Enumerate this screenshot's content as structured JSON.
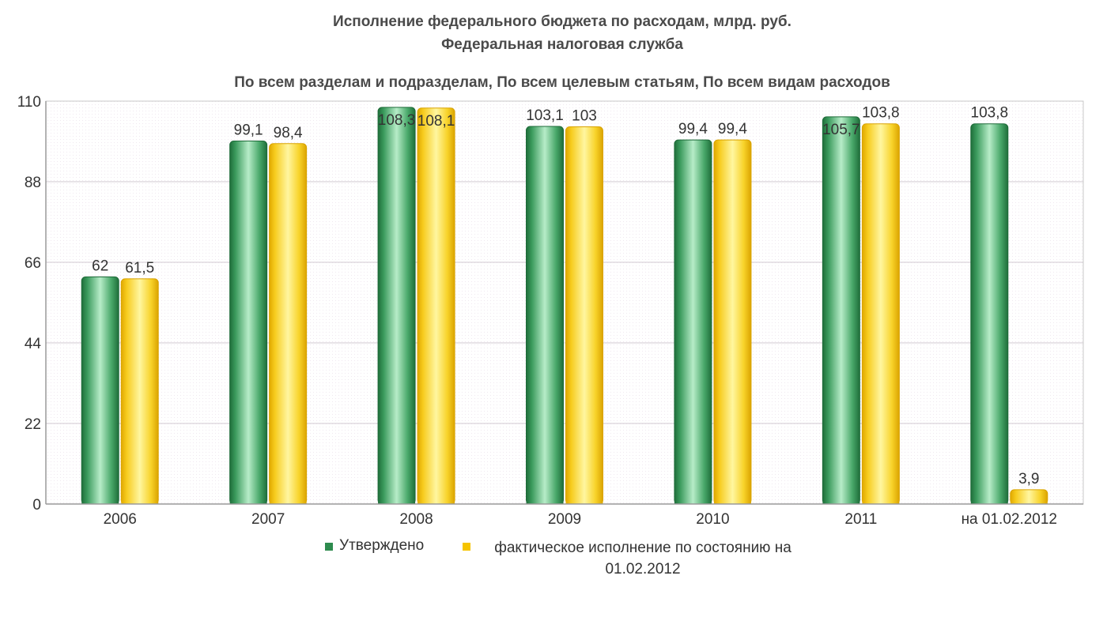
{
  "titles": {
    "line1": "Исполнение федерального бюджета по расходам, млрд. руб.",
    "line2": "Федеральная налоговая служба",
    "line3": "По всем разделам и подразделам, По всем целевым статьям, По всем видам расходов"
  },
  "colors": {
    "approved": "#2e8b4e",
    "actual": "#f5c400",
    "grid": "#d0c8d0",
    "plot_bg": "#fbf8fb"
  },
  "legend": {
    "approved": "Утверждено",
    "actual": "фактическое исполнение по состоянию на 01.02.2012"
  },
  "chart_data": {
    "type": "bar",
    "categories": [
      "2006",
      "2007",
      "2008",
      "2009",
      "2010",
      "2011",
      "на 01.02.2012"
    ],
    "series": [
      {
        "name": "Утверждено",
        "values": [
          62,
          99.1,
          108.3,
          103.1,
          99.4,
          105.7,
          103.8
        ],
        "labels": [
          "62",
          "99,1",
          "108,3",
          "103,1",
          "99,4",
          "105,7",
          "103,8"
        ]
      },
      {
        "name": "фактическое исполнение по состоянию на 01.02.2012",
        "values": [
          61.5,
          98.4,
          108.1,
          103,
          99.4,
          103.8,
          3.9
        ],
        "labels": [
          "61,5",
          "98,4",
          "108,1",
          "103",
          "99,4",
          "103,8",
          "3,9"
        ]
      }
    ],
    "ylim": [
      0,
      110
    ],
    "yticks": [
      0,
      22,
      44,
      66,
      88,
      110
    ],
    "grid": true,
    "legend_position": "bottom"
  }
}
